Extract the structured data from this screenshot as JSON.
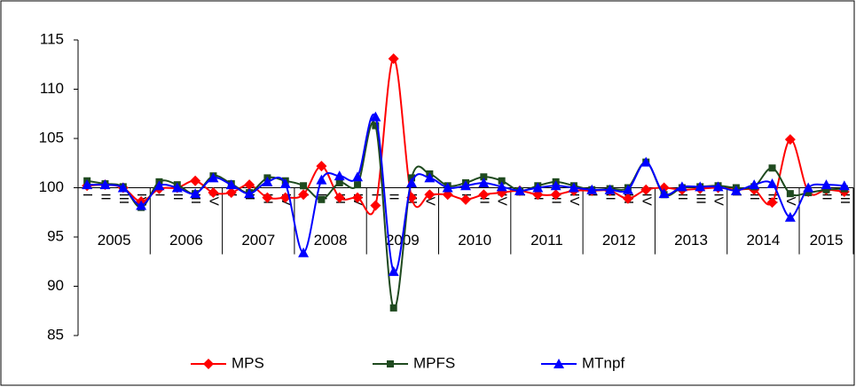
{
  "chart_data": {
    "type": "line",
    "categories": [
      "I",
      "II",
      "III",
      "IV",
      "I",
      "II",
      "III",
      "IV",
      "I",
      "II",
      "III",
      "IV",
      "I",
      "II",
      "III",
      "IV",
      "I",
      "II",
      "III",
      "IV",
      "I",
      "II",
      "III",
      "IV",
      "I",
      "II",
      "III",
      "IV",
      "I",
      "II",
      "III",
      "IV",
      "I",
      "II",
      "III",
      "IV",
      "I",
      "II",
      "III",
      "IV",
      "I",
      "II",
      "III"
    ],
    "x_groups": [
      "2005",
      "2006",
      "2007",
      "2008",
      "2009",
      "2010",
      "2011",
      "2012",
      "2013",
      "2014",
      "2015"
    ],
    "series": [
      {
        "name": "MPS",
        "color": "#ff0000",
        "marker": "diamond",
        "values": [
          100.2,
          100.3,
          100.0,
          98.6,
          99.9,
          100.0,
          100.7,
          99.5,
          99.5,
          100.3,
          99.0,
          99.0,
          99.3,
          102.2,
          99.0,
          99.0,
          98.2,
          113.1,
          99.0,
          99.3,
          99.3,
          98.8,
          99.3,
          99.5,
          99.7,
          99.3,
          99.3,
          99.7,
          99.7,
          99.7,
          98.9,
          99.8,
          100.0,
          99.8,
          99.9,
          100.0,
          99.8,
          99.8,
          98.5,
          104.9,
          99.6,
          99.8,
          99.6
        ]
      },
      {
        "name": "MPFS",
        "color": "#1f4a1f",
        "marker": "square",
        "values": [
          100.7,
          100.4,
          100.1,
          98.0,
          100.6,
          100.3,
          99.4,
          101.2,
          100.4,
          99.5,
          101.0,
          100.7,
          100.2,
          98.8,
          100.5,
          100.3,
          106.3,
          87.8,
          101.0,
          101.4,
          100.2,
          100.5,
          101.1,
          100.7,
          99.7,
          100.2,
          100.6,
          100.2,
          99.8,
          99.9,
          100.0,
          102.6,
          99.3,
          100.0,
          100.1,
          100.2,
          100.0,
          100.1,
          102.0,
          99.4,
          99.5,
          99.8,
          99.9
        ]
      },
      {
        "name": "MTnpf",
        "color": "#0000ff",
        "marker": "triangle",
        "values": [
          100.3,
          100.3,
          100.0,
          98.2,
          100.2,
          100.0,
          99.4,
          101.0,
          100.3,
          99.4,
          100.6,
          100.4,
          93.4,
          100.8,
          101.2,
          101.1,
          107.2,
          91.5,
          100.5,
          101.0,
          100.0,
          100.2,
          100.5,
          100.1,
          99.7,
          100.0,
          100.2,
          100.0,
          99.8,
          99.8,
          99.8,
          102.6,
          99.4,
          100.1,
          100.1,
          100.1,
          99.7,
          100.3,
          100.4,
          97.0,
          100.0,
          100.3,
          100.2
        ]
      }
    ],
    "ylim": [
      85,
      115
    ],
    "yticks": [
      85,
      90,
      95,
      100,
      105,
      110,
      115
    ],
    "x_axis_at": 100,
    "grid": false,
    "smooth": true,
    "legend": "bottom"
  }
}
